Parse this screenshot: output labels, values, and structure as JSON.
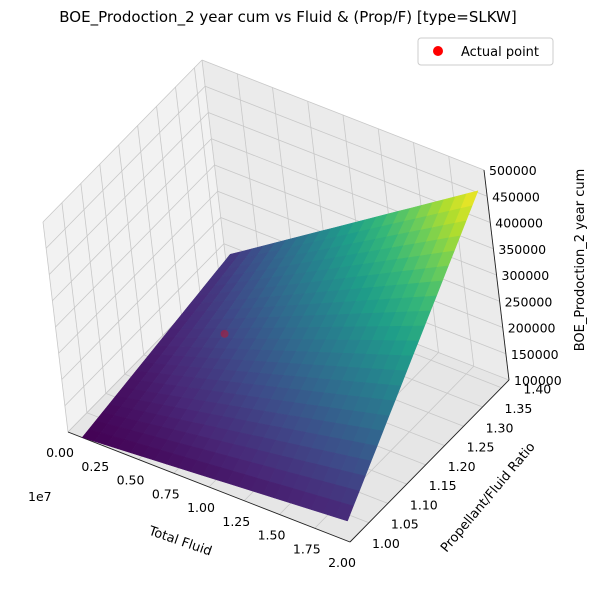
{
  "chart_data": {
    "type": "surface3d",
    "title": "BOE_Prodoction_2 year cum vs Fluid & (Prop/F)  [type=SLKW]",
    "xlabel": "Total Fluid",
    "ylabel": "Propellant/Fluid Ratio",
    "zlabel": "BOE_Prodoction_2 year cum",
    "x_offset_label": "1e7",
    "xlim": [
      0,
      2.0
    ],
    "ylim": [
      1.0,
      1.42
    ],
    "zlim": [
      100000,
      500000
    ],
    "x_ticks": [
      "0.00",
      "0.25",
      "0.50",
      "0.75",
      "1.00",
      "1.25",
      "1.50",
      "1.75",
      "2.00"
    ],
    "y_ticks": [
      "1.00",
      "1.05",
      "1.10",
      "1.15",
      "1.20",
      "1.25",
      "1.30",
      "1.35",
      "1.40"
    ],
    "z_ticks": [
      "100000",
      "150000",
      "200000",
      "250000",
      "300000",
      "350000",
      "400000",
      "450000",
      "500000"
    ],
    "x_tick_values": [
      0,
      0.25,
      0.5,
      0.75,
      1.0,
      1.25,
      1.5,
      1.75,
      2.0
    ],
    "y_tick_values": [
      1.0,
      1.05,
      1.1,
      1.15,
      1.2,
      1.25,
      1.3,
      1.35,
      1.4
    ],
    "z_tick_values": [
      100000,
      150000,
      200000,
      250000,
      300000,
      350000,
      400000,
      450000,
      500000
    ],
    "surface": {
      "x_range": [
        0.1,
        2.0
      ],
      "y_range": [
        1.0,
        1.4
      ],
      "corner_values": {
        "x_min_y_min": 100000,
        "x_max_y_min": 140000,
        "x_min_y_max": 155000,
        "x_max_y_max": 475000
      },
      "colormap": "viridis"
    },
    "actual_point": {
      "x": 0.62,
      "y": 1.2,
      "z": 205000,
      "color": "#ff0000"
    },
    "legend": [
      {
        "label": "Actual point",
        "color": "#ff0000",
        "marker": "circle"
      }
    ],
    "legend_position": "top-right",
    "grid": true
  }
}
